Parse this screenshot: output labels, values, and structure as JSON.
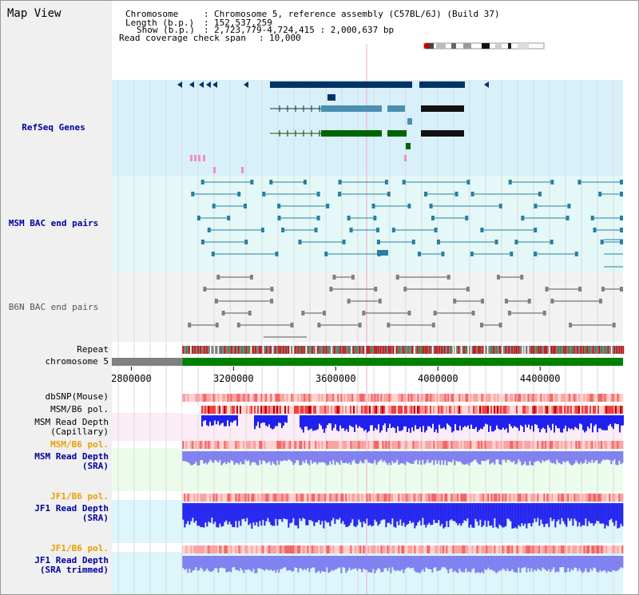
{
  "view_title": "Map View",
  "header": {
    "chromosome_label": "Chromosome",
    "chromosome_value": "Chromosome 5, reference assembly (C57BL/6J) (Build 37)",
    "length_label": "Length (b.p.)",
    "length_value": "152,537,259",
    "show_label": "Show (b.p.)",
    "show_value": "2,723,779-4,724,415 : 2,000,637 bp",
    "coverage_label": "Read coverage check span",
    "coverage_value": "10,000"
  },
  "tracks": {
    "refseq": "RefSeq Genes",
    "msm_bac": "MSM BAC end pairs",
    "b6n_bac": "B6N BAC end pairs",
    "repeat": "Repeat",
    "chromosome": "chromosome 5",
    "dbsnp": "dbSNP(Mouse)",
    "msm_b6_pol_1": "MSM/B6 pol.",
    "msm_depth_cap_1": "MSM Read Depth",
    "msm_depth_cap_2": "(Capillary)",
    "msm_b6_pol_2": "MSM/B6 pol.",
    "msm_depth_sra_1": "MSM Read Depth",
    "msm_depth_sra_2": "(SRA)",
    "jf1_b6_pol_1": "JF1/B6 pol.",
    "jf1_depth_sra_1": "JF1 Read Depth",
    "jf1_depth_sra_2": "(SRA)",
    "jf1_b6_pol_2": "JF1/B6 pol.",
    "jf1_depth_trim_1": "JF1 Read Depth",
    "jf1_depth_trim_2": "(SRA trimmed)"
  },
  "axis": {
    "ticks": [
      {
        "value": 2800000,
        "label": "2800000"
      },
      {
        "value": 3200000,
        "label": "3200000"
      },
      {
        "value": 3600000,
        "label": "3600000"
      },
      {
        "value": 4000000,
        "label": "4000000"
      },
      {
        "value": 4400000,
        "label": "4400000"
      }
    ],
    "view_start": 2723779,
    "view_end": 4724415,
    "data_start": 3000000
  },
  "colors": {
    "refseq_bg": "#d8f0fa",
    "msm_bg": "#e4f8f8",
    "b6n_bg": "#f2f2f2",
    "gene_navy": "#003366",
    "gene_steel": "#4a8fb0",
    "gene_green": "#006400",
    "bac_teal": "#2a7f9f",
    "bac_gray": "#808080",
    "depth_blue": "#2020ee",
    "depth_lilac": "#7c7cf0",
    "chromosome_green": "#008000",
    "pol_red": "#ff3030",
    "snp_pink": "#f8a0a0"
  }
}
